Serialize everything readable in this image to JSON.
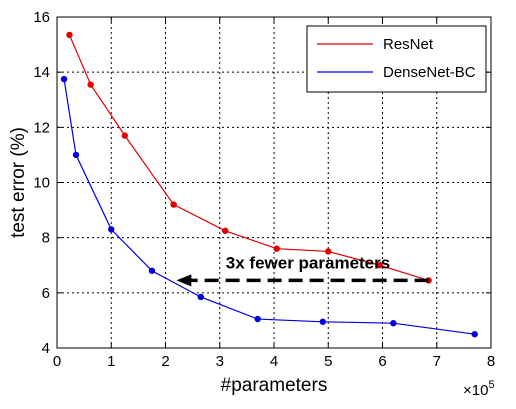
{
  "chart_data": {
    "type": "line",
    "xlabel": "#parameters",
    "ylabel": "test error (%)",
    "x_multiplier": "×10",
    "x_multiplier_exp": "5",
    "xlim": [
      0,
      8
    ],
    "ylim": [
      4,
      16
    ],
    "x_ticks": [
      "0",
      "1",
      "2",
      "3",
      "4",
      "5",
      "6",
      "7",
      "8"
    ],
    "y_ticks": [
      "4",
      "6",
      "8",
      "10",
      "12",
      "14",
      "16"
    ],
    "grid": true,
    "legend_position": "top-right",
    "series": [
      {
        "name": "ResNet",
        "color": "#e00000",
        "x": [
          0.23,
          0.62,
          1.25,
          2.15,
          3.1,
          4.05,
          5.0,
          5.95,
          6.85
        ],
        "y": [
          15.35,
          13.55,
          11.7,
          9.2,
          8.25,
          7.6,
          7.5,
          7.0,
          6.45
        ]
      },
      {
        "name": "DenseNet-BC",
        "color": "#0000e0",
        "x": [
          0.13,
          0.35,
          1.0,
          1.75,
          2.65,
          3.7,
          4.9,
          6.2,
          7.7
        ],
        "y": [
          13.75,
          11.0,
          8.3,
          6.8,
          5.85,
          5.05,
          4.95,
          4.9,
          4.5
        ]
      }
    ],
    "annotation": {
      "text": "3x fewer parameters",
      "arrow_from": [
        6.85,
        6.45
      ],
      "arrow_to": [
        2.2,
        6.45
      ]
    }
  }
}
